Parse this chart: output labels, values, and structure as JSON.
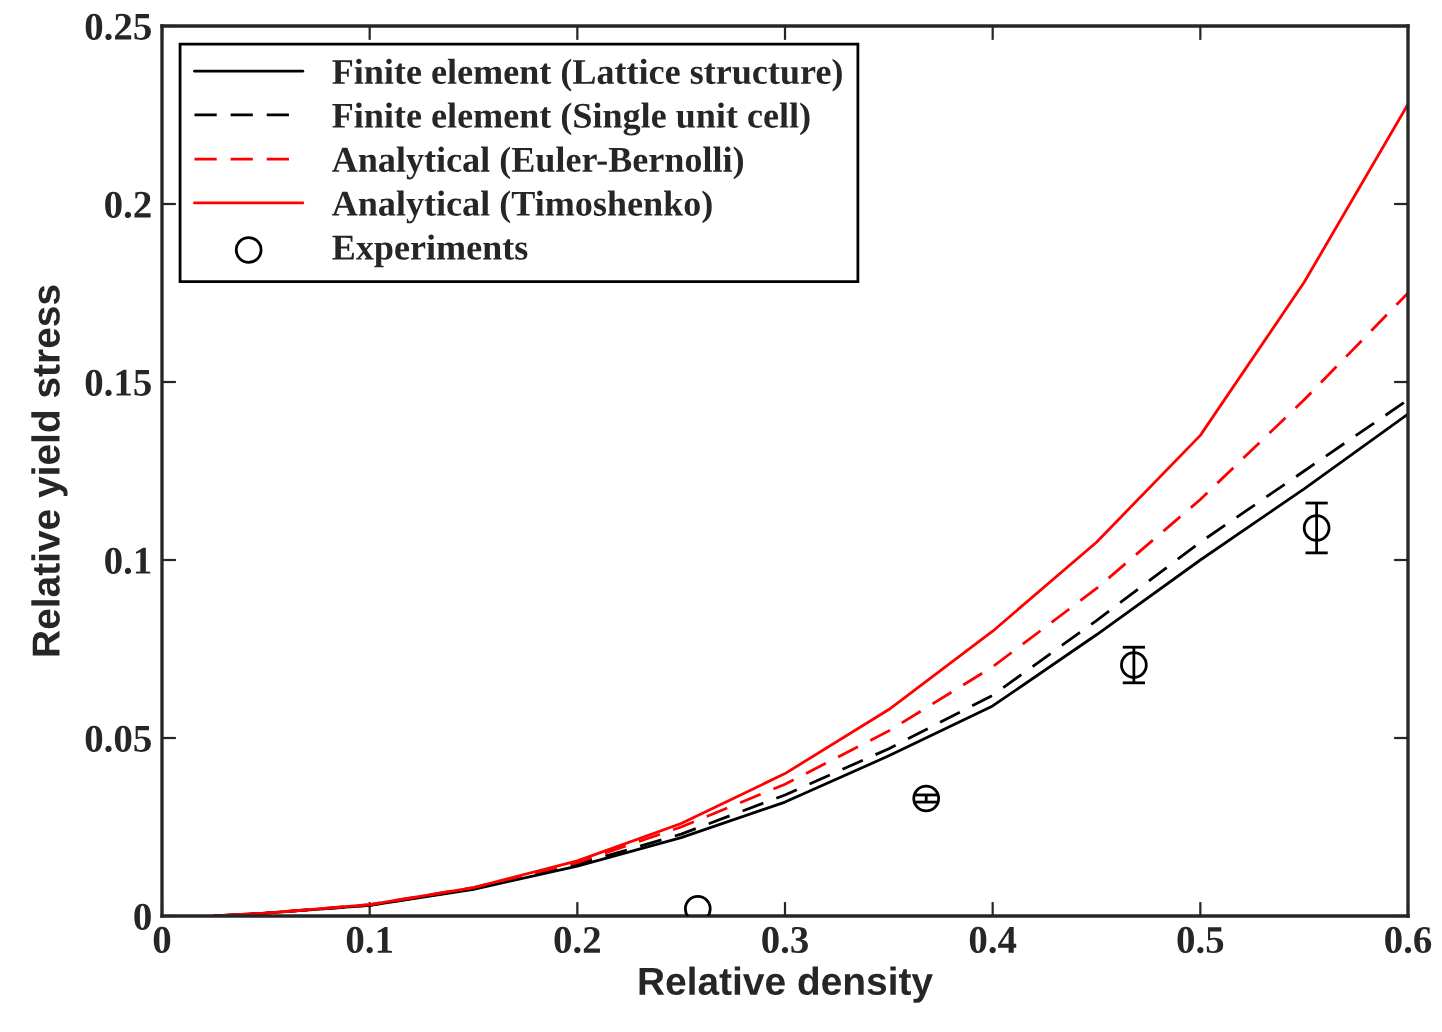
{
  "chart_data": {
    "type": "line",
    "xlabel": "Relative density",
    "ylabel": "Relative yield stress",
    "xlim": [
      0,
      0.6
    ],
    "ylim": [
      0,
      0.25
    ],
    "xticks": [
      0,
      0.1,
      0.2,
      0.3,
      0.4,
      0.5,
      0.6
    ],
    "yticks": [
      0,
      0.05,
      0.1,
      0.15,
      0.2,
      0.25
    ],
    "grid": false,
    "legend": "top left",
    "x": [
      0.025,
      0.05,
      0.1,
      0.15,
      0.2,
      0.25,
      0.3,
      0.35,
      0.4,
      0.45,
      0.5,
      0.55,
      0.6
    ],
    "series": [
      {
        "name": "Finite element (Lattice structure)",
        "color": "#000000",
        "line_style": "solid",
        "marker": "none",
        "values": [
          0,
          0.0008,
          0.003,
          0.0075,
          0.014,
          0.022,
          0.032,
          0.045,
          0.059,
          0.079,
          0.1,
          0.12,
          0.141
        ]
      },
      {
        "name": "Finite element (Single unit cell)",
        "color": "#000000",
        "line_style": "dashed",
        "marker": "none",
        "values": [
          0,
          0.0008,
          0.003,
          0.0077,
          0.0145,
          0.023,
          0.034,
          0.047,
          0.062,
          0.083,
          0.105,
          0.125,
          0.145
        ]
      },
      {
        "name": "Analytical (Euler-Bernolli)",
        "color": "#ff0000",
        "line_style": "dashed",
        "marker": "none",
        "values": [
          0,
          0.0008,
          0.0032,
          0.008,
          0.015,
          0.025,
          0.037,
          0.052,
          0.07,
          0.092,
          0.117,
          0.145,
          0.175
        ]
      },
      {
        "name": "Analytical (Timoshenko)",
        "color": "#ff0000",
        "line_style": "solid",
        "marker": "none",
        "values": [
          0,
          0.0008,
          0.0032,
          0.008,
          0.0155,
          0.026,
          0.04,
          0.058,
          0.08,
          0.105,
          0.135,
          0.178,
          0.228
        ]
      },
      {
        "name": "Experiments",
        "type": "scatter",
        "color": "#000000",
        "marker": "circle",
        "x": [
          0.258,
          0.368,
          0.468,
          0.556
        ],
        "values": [
          0.002,
          0.033,
          0.0705,
          0.109
        ],
        "errors": [
          null,
          0.001,
          0.005,
          0.007
        ]
      }
    ]
  }
}
